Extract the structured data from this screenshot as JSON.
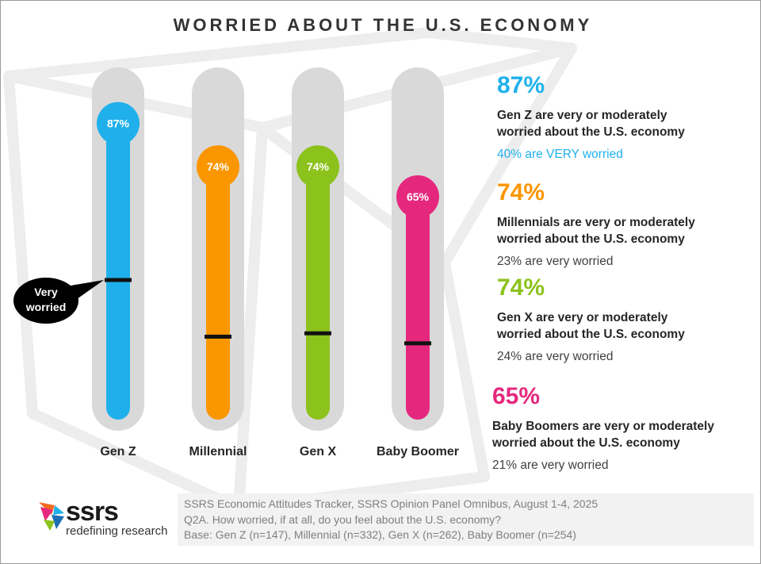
{
  "title": "WORRIED ABOUT THE U.S. ECONOMY",
  "colors": {
    "track": "#d9d9d9",
    "marker": "#111111",
    "callout": "#000000"
  },
  "chart_data": {
    "type": "bar",
    "title": "WORRIED ABOUT THE U.S. ECONOMY",
    "categories": [
      "Gen Z",
      "Millennial",
      "Gen X",
      "Baby Boomer"
    ],
    "ylim": [
      0,
      100
    ],
    "series": [
      {
        "name": "Very or moderately worried",
        "values": [
          87,
          74,
          74,
          65
        ]
      },
      {
        "name": "Very worried",
        "values": [
          40,
          23,
          24,
          21
        ]
      }
    ],
    "value_labels": [
      "87%",
      "74%",
      "74%",
      "65%"
    ],
    "bar_colors": [
      "#1fb0ec",
      "#fa9600",
      "#8cc21c",
      "#e5287e"
    ],
    "annotation": "Very worried"
  },
  "callout": {
    "line1": "Very",
    "line2": "worried"
  },
  "stats": [
    {
      "big": "87%",
      "desc1": "Gen Z are very or moderately",
      "desc2": "worried about the U.S. economy",
      "sub": "40% are VERY worried",
      "color": "#1fb0ec",
      "sub_color": "#1fb0ec"
    },
    {
      "big": "74%",
      "desc1": "Millennials are very or moderately",
      "desc2": "worried about the U.S. economy",
      "sub": "23% are very worried",
      "color": "#fa9600",
      "sub_color": "#404040"
    },
    {
      "big": "74%",
      "desc1": "Gen X are very or moderately",
      "desc2": "worried about the U.S. economy",
      "sub": "24% are very worried",
      "color": "#8cc21c",
      "sub_color": "#404040"
    },
    {
      "big": "65%",
      "desc1": "Baby Boomers are very or moderately",
      "desc2": "worried about the U.S. economy",
      "sub": "21% are very worried",
      "color": "#e5287e",
      "sub_color": "#404040"
    }
  ],
  "logo": {
    "name": "ssrs",
    "tagline": "redefining research"
  },
  "source": {
    "line1": "SSRS Economic Attitudes Tracker, SSRS Opinion Panel Omnibus, August 1-4, 2025",
    "line2": "Q2A. How worried, if at all, do you feel about the U.S. economy?",
    "line3": "Base: Gen Z (n=147), Millennial (n=332), Gen X (n=262), Baby Boomer (n=254)"
  }
}
